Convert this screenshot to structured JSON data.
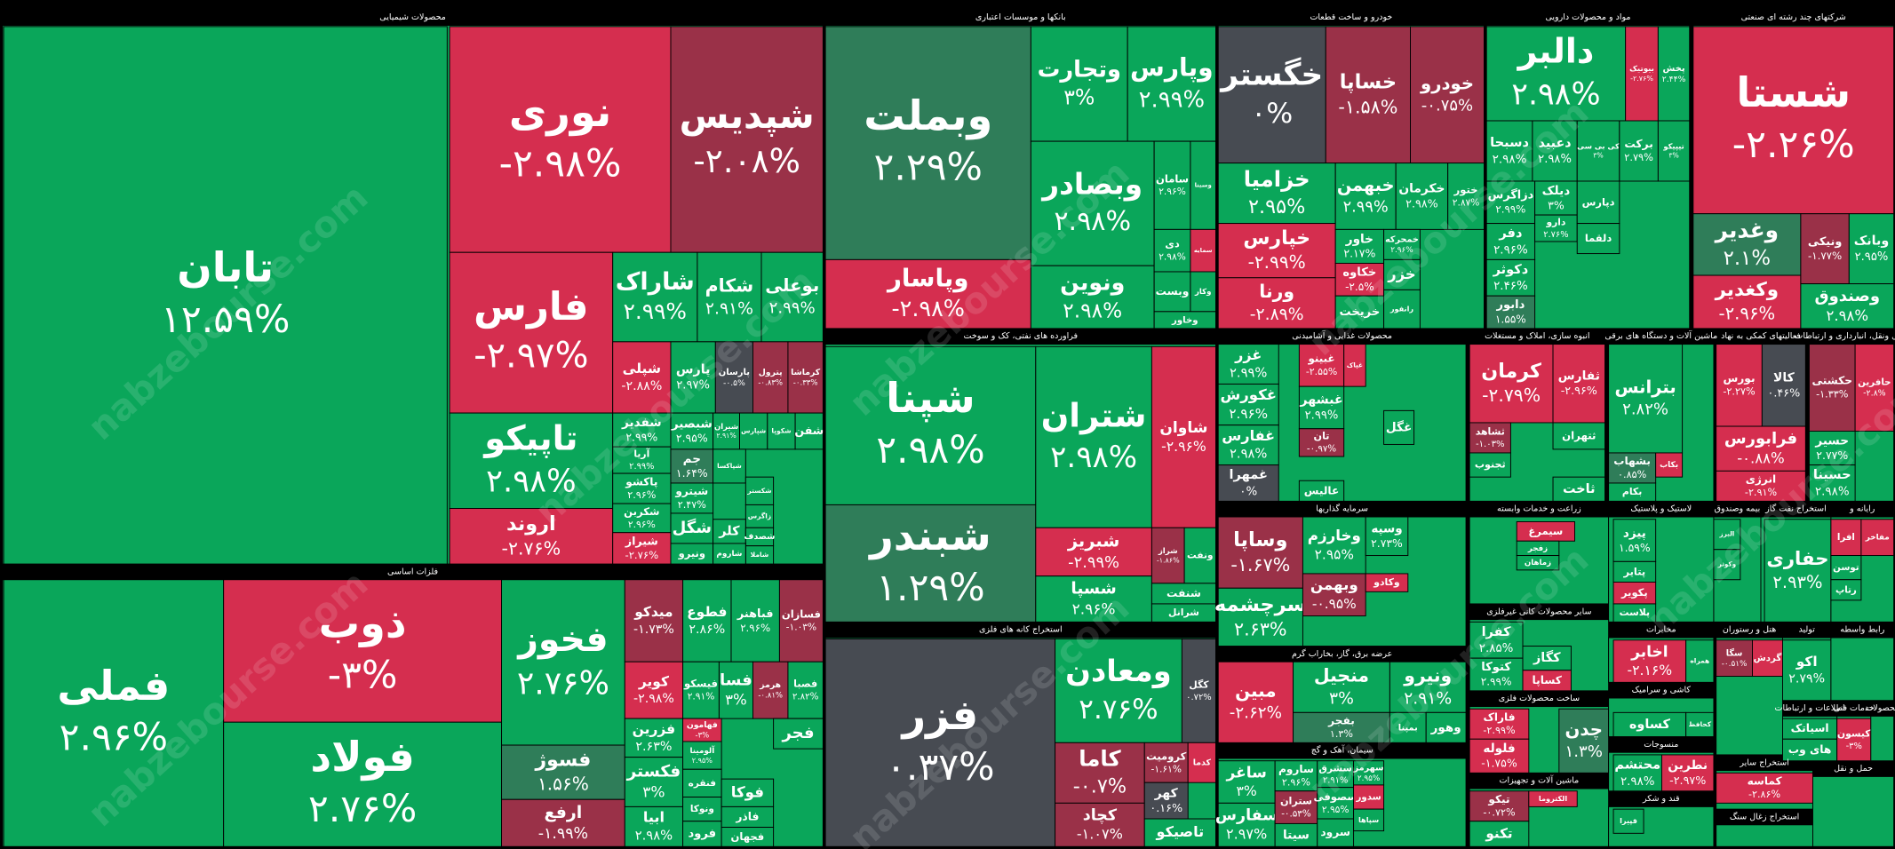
{
  "watermark": "nabzebourse.com",
  "sectors": [
    {
      "name": "محصولات شیمیایی",
      "tiles": [
        {
          "name": "تابان",
          "change": "۱۲.۵۹%"
        },
        {
          "name": "نوری",
          "change": "-۲.۹۸%"
        },
        {
          "name": "شپدیس",
          "change": "-۲.۰۸%"
        },
        {
          "name": "فارس",
          "change": "-۲.۹۷%"
        },
        {
          "name": "شاراک",
          "change": "۲.۹۹%"
        },
        {
          "name": "شکام",
          "change": "۲.۹۱%"
        },
        {
          "name": "بوعلی",
          "change": "۲.۹۹%"
        },
        {
          "name": "شپلی",
          "change": "-۲.۸۸%"
        },
        {
          "name": "پارس",
          "change": "۲.۹۷%"
        },
        {
          "name": "پارسان",
          "change": "-۰.۵%"
        },
        {
          "name": "پترول",
          "change": "-۰.۸۳%"
        },
        {
          "name": "کرماشا",
          "change": "-۰.۳۳%"
        },
        {
          "name": "تاپیکو",
          "change": "۲.۹۸%"
        },
        {
          "name": "اروند",
          "change": "-۲.۷۶%"
        },
        {
          "name": "شفدیر",
          "change": "۲.۹۹%"
        },
        {
          "name": "آریا",
          "change": "۲.۹۹%"
        },
        {
          "name": "پاکشو",
          "change": "۲.۹۶%"
        },
        {
          "name": "شکربن",
          "change": "۲.۹۶%"
        },
        {
          "name": "شیراز",
          "change": "-۲.۷۶%"
        },
        {
          "name": "شبصیر",
          "change": "۲.۹۵%"
        },
        {
          "name": "جم",
          "change": "۱.۶۴%"
        },
        {
          "name": "شیترو",
          "change": "۲.۴۷%"
        },
        {
          "name": "شگل"
        },
        {
          "name": "ونیرو"
        },
        {
          "name": "شیران",
          "change": "۲.۹۱%"
        },
        {
          "name": "شپارس"
        },
        {
          "name": "شکوپا"
        },
        {
          "name": "شفن"
        },
        {
          "name": "شپاکسا"
        },
        {
          "name": "شکستر"
        },
        {
          "name": "زاگرس"
        },
        {
          "name": "کلر"
        },
        {
          "name": "شصدف"
        },
        {
          "name": "شاملا"
        },
        {
          "name": "شاروم"
        }
      ]
    },
    {
      "name": "فلزات اساسی",
      "tiles": [
        {
          "name": "فملی",
          "change": "۲.۹۶%"
        },
        {
          "name": "ذوب",
          "change": "-۳%"
        },
        {
          "name": "فولاد",
          "change": "۲.۷۶%"
        },
        {
          "name": "فخوز",
          "change": "۲.۷۶%"
        },
        {
          "name": "فسوژ",
          "change": "۱.۵۶%"
        },
        {
          "name": "ارفع",
          "change": "-۱.۹۹%"
        },
        {
          "name": "میدکو",
          "change": "-۱.۷۳%"
        },
        {
          "name": "فطوع",
          "change": "۲.۸۶%"
        },
        {
          "name": "فباهنر",
          "change": "۲.۹۶%"
        },
        {
          "name": "فسازان",
          "change": "-۱.۰۳%"
        },
        {
          "name": "کویر",
          "change": "-۲.۹۸%"
        },
        {
          "name": "فیسکو",
          "change": "۲.۹۱%"
        },
        {
          "name": "فسا",
          "change": "۳%"
        },
        {
          "name": "هرمز",
          "change": "-۰.۸۱%"
        },
        {
          "name": "فصبا",
          "change": "۲.۸۲%"
        },
        {
          "name": "فزرین",
          "change": "۲.۶۳%"
        },
        {
          "name": "فکستر",
          "change": "۳%"
        },
        {
          "name": "ابیا",
          "change": "۲.۹۸%"
        },
        {
          "name": "فهامون",
          "change": "-۳%"
        },
        {
          "name": "آلومینا",
          "change": "۲.۹۵%"
        },
        {
          "name": "فنقره"
        },
        {
          "name": "ونوکا"
        },
        {
          "name": "فرود"
        },
        {
          "name": "فجر"
        },
        {
          "name": "فوکا"
        },
        {
          "name": "فاذر"
        },
        {
          "name": "فجهان"
        }
      ]
    },
    {
      "name": "بانکها و موسسات اعتباری",
      "tiles": [
        {
          "name": "وبملت",
          "change": "۲.۲۹%"
        },
        {
          "name": "وپاسار",
          "change": "-۲.۹۸%"
        },
        {
          "name": "وتجارت",
          "change": "۳%"
        },
        {
          "name": "وپارس",
          "change": "۲.۹۹%"
        },
        {
          "name": "وبصادر",
          "change": "۲.۹۸%"
        },
        {
          "name": "ونوین",
          "change": "۲.۹۸%"
        },
        {
          "name": "سامان",
          "change": "۲.۹۶%"
        },
        {
          "name": "وسینا"
        },
        {
          "name": "دی",
          "change": "۲.۹۸%"
        },
        {
          "name": "سمایه"
        },
        {
          "name": "وبست"
        },
        {
          "name": "وکار"
        },
        {
          "name": "وخاور"
        }
      ]
    },
    {
      "name": "فراورده های نفتی، کک و سوخت",
      "tiles": [
        {
          "name": "شپنا",
          "change": "۲.۹۸%"
        },
        {
          "name": "شبندر",
          "change": "۱.۲۹%"
        },
        {
          "name": "شتران",
          "change": "۲.۹۸%"
        },
        {
          "name": "شاوان",
          "change": "-۲.۹۶%"
        },
        {
          "name": "شبریز",
          "change": "-۲.۹۹%"
        },
        {
          "name": "شسپا",
          "change": "۲.۹۶%"
        },
        {
          "name": "شراز",
          "change": "-۱.۸۶%"
        },
        {
          "name": "ونفت"
        },
        {
          "name": "شنفت"
        },
        {
          "name": "شرانل"
        }
      ]
    },
    {
      "name": "استخراج کانه های فلزی",
      "tiles": [
        {
          "name": "فزر",
          "change": "۰.۳۷%"
        },
        {
          "name": "ومعادن",
          "change": "۲.۷۶%"
        },
        {
          "name": "کگل",
          "change": "۰.۷۲%"
        },
        {
          "name": "کاما",
          "change": "-۰.۷%"
        },
        {
          "name": "کرومیت",
          "change": "-۱.۶۱%"
        },
        {
          "name": "کدما"
        },
        {
          "name": "کچاد",
          "change": "-۱.۰۷%"
        },
        {
          "name": "کهر",
          "change": "۰.۱۶%"
        },
        {
          "name": "تاصیکو"
        }
      ]
    },
    {
      "name": "خودرو و ساخت قطعات",
      "tiles": [
        {
          "name": "خگستر",
          "change": "۰%"
        },
        {
          "name": "خساپا",
          "change": "-۱.۵۸%"
        },
        {
          "name": "خودرو",
          "change": "-۰.۷۵%"
        },
        {
          "name": "خزامیا",
          "change": "۲.۹۵%"
        },
        {
          "name": "خپارس",
          "change": "-۲.۹۹%"
        },
        {
          "name": "ورنا",
          "change": "-۲.۸۹%"
        },
        {
          "name": "خبهمن",
          "change": "۲.۹۹%"
        },
        {
          "name": "خکرمان",
          "change": "۲.۹۸%"
        },
        {
          "name": "ختور",
          "change": "۲.۸۷%"
        },
        {
          "name": "خاور",
          "change": "۲.۱۷%"
        },
        {
          "name": "خکاوه",
          "change": "-۲.۵%"
        },
        {
          "name": "خریخت"
        },
        {
          "name": "خمحرکه",
          "change": "۲.۹۶%"
        },
        {
          "name": "خزر"
        },
        {
          "name": "رانفور"
        }
      ]
    },
    {
      "name": "مواد و محصولات دارویی",
      "tiles": [
        {
          "name": "دالبر",
          "change": "۲.۹۸%"
        },
        {
          "name": "بیوتیک",
          "change": "-۲.۷۶%"
        },
        {
          "name": "پخش",
          "change": "۲.۴۴%"
        },
        {
          "name": "دسبحا",
          "change": "۲.۹۸%"
        },
        {
          "name": "دعبید",
          "change": "۲.۹۸%"
        },
        {
          "name": "کی بی سی",
          "change": "۳%"
        },
        {
          "name": "برکت",
          "change": "۲.۷۹%"
        },
        {
          "name": "تیپیکو",
          "change": "۳%"
        },
        {
          "name": "دزاگرس",
          "change": "۲.۹۹%"
        },
        {
          "name": "دفر",
          "change": "۲.۹۶%"
        },
        {
          "name": "دکوثر",
          "change": "۲.۴۶%"
        },
        {
          "name": "دابور",
          "change": "۱.۵۵%"
        },
        {
          "name": "دیلک",
          "change": "۳%"
        },
        {
          "name": "دارو",
          "change": "۲.۷۶%"
        },
        {
          "name": "دپارس"
        },
        {
          "name": "دلقما"
        }
      ]
    },
    {
      "name": "شرکتهای چند رشته ای صنعتی",
      "tiles": [
        {
          "name": "شستا",
          "change": "-۲.۲۶%"
        },
        {
          "name": "وغدیر",
          "change": "۲.۱%"
        },
        {
          "name": "وکغدیر",
          "change": "-۲.۹۶%"
        },
        {
          "name": "ونیکی",
          "change": "-۱.۷۷%"
        },
        {
          "name": "وبانک",
          "change": "۲.۹۵%"
        },
        {
          "name": "وصندوق",
          "change": "۲.۹۸%"
        }
      ]
    },
    {
      "name": "محصولات غذایی و آشامیدنی",
      "tiles": [
        {
          "name": "غزر",
          "change": "۲.۹۹%"
        },
        {
          "name": "غکورش",
          "change": "۲.۹۶%"
        },
        {
          "name": "غفارس",
          "change": "۲.۹۸%"
        },
        {
          "name": "غمهرا",
          "change": "۰%"
        },
        {
          "name": "غبینو",
          "change": "-۲.۵۵%"
        },
        {
          "name": "غپاک"
        },
        {
          "name": "غبشهر",
          "change": "۲.۹۹%"
        },
        {
          "name": "تان",
          "change": "-۰.۹۷%"
        },
        {
          "name": "عالیس"
        },
        {
          "name": "غگل"
        }
      ]
    },
    {
      "name": "انبوه سازی، املاک و مستغلات",
      "tiles": [
        {
          "name": "کرمان",
          "change": "-۲.۷۹%"
        },
        {
          "name": "ثفارس",
          "change": "-۲.۹۶%"
        },
        {
          "name": "ثشاهد",
          "change": "-۱.۰۳%"
        },
        {
          "name": "ثتهران"
        },
        {
          "name": "ثجنوب"
        },
        {
          "name": "ثاخت"
        }
      ]
    },
    {
      "name": "ماشین آلات و دستگاه های برقی",
      "tiles": [
        {
          "name": "بترانس",
          "change": "۲.۸۲%"
        },
        {
          "name": "بشهاب",
          "change": "۰.۸۵%"
        },
        {
          "name": "بکام"
        },
        {
          "name": "بکاب"
        }
      ]
    },
    {
      "name": "فعالیتهای کمکی به نهاد",
      "tiles": [
        {
          "name": "بورس",
          "change": "-۲.۲۷%"
        },
        {
          "name": "کالا",
          "change": "۰.۴۶%"
        },
        {
          "name": "فرابورس",
          "change": "-۰.۸۸%"
        },
        {
          "name": "انرژی",
          "change": "-۲.۹۱%"
        }
      ]
    },
    {
      "name": "حمل ونقل، انبارداری و ارتباطات",
      "tiles": [
        {
          "name": "حکشتی",
          "change": "-۱.۳۳%"
        },
        {
          "name": "حافرین",
          "change": "-۲.۸%"
        },
        {
          "name": "حسیر",
          "change": "۲.۷۷%"
        },
        {
          "name": "حسینا",
          "change": "۲.۹۸%"
        }
      ]
    },
    {
      "name": "سرمایه گذاریها",
      "tiles": [
        {
          "name": "وساپا",
          "change": "-۱.۶۷%"
        },
        {
          "name": "سرچشمه",
          "change": "۲.۶۳%"
        },
        {
          "name": "وخارزم",
          "change": "۲.۹۵%"
        },
        {
          "name": "وسپه",
          "change": "۲.۷۳%"
        },
        {
          "name": "وبهمن",
          "change": "-۰.۹۵%"
        },
        {
          "name": "وکادو"
        }
      ]
    },
    {
      "name": "زراعت و خدمات وابسته",
      "tiles": [
        {
          "name": "سیمرغ"
        },
        {
          "name": "زفجر"
        },
        {
          "name": "زماهان"
        }
      ]
    },
    {
      "name": "لاستیک و پلاستیک",
      "tiles": [
        {
          "name": "پیزد",
          "change": "۱.۵۹%"
        },
        {
          "name": "پتایر"
        },
        {
          "name": "پکویر"
        },
        {
          "name": "پلاست"
        }
      ]
    },
    {
      "name": "بیمه وصندوق",
      "tiles": [
        {
          "name": "البرز"
        },
        {
          "name": "وکوثر"
        }
      ]
    },
    {
      "name": "استخراج نفت گاز",
      "tiles": [
        {
          "name": "حفاری",
          "change": "۲.۹۳%"
        }
      ]
    },
    {
      "name": "رایانه و",
      "tiles": [
        {
          "name": "افرا"
        },
        {
          "name": "مفاخر"
        },
        {
          "name": "توسن"
        },
        {
          "name": "رتاپ"
        }
      ]
    },
    {
      "name": "عرضه برق، گاز، بخاراب گرم",
      "tiles": [
        {
          "name": "مبین",
          "change": "-۲.۶۲%"
        },
        {
          "name": "منجیل",
          "change": "۳%"
        },
        {
          "name": "بفجر",
          "change": "۱.۳%"
        },
        {
          "name": "ونیرو",
          "change": "۲.۹۱%"
        },
        {
          "name": "بمپنا"
        },
        {
          "name": "وهور"
        }
      ]
    },
    {
      "name": "سیمان، آهک و گچ",
      "tiles": [
        {
          "name": "ساغر",
          "change": "۳%"
        },
        {
          "name": "سفارس",
          "change": "۲.۹۷%"
        },
        {
          "name": "ساروم",
          "change": "۲.۹۶%"
        },
        {
          "name": "ستران",
          "change": "-۰.۵۳%"
        },
        {
          "name": "سیتا"
        },
        {
          "name": "سشرق",
          "change": "۲.۹۱%"
        },
        {
          "name": "سصوفی",
          "change": "۲.۹۵%"
        },
        {
          "name": "سرود"
        },
        {
          "name": "سهرمز",
          "change": "۲.۹۵%"
        },
        {
          "name": "سدور"
        },
        {
          "name": "سپاها"
        }
      ]
    },
    {
      "name": "سایر محصولات کانی غیرفلزی",
      "tiles": [
        {
          "name": "کفرا",
          "change": "۲.۸۵%"
        },
        {
          "name": "کتوکا",
          "change": "۲.۹۹%"
        },
        {
          "name": "کگاز"
        },
        {
          "name": "کساپا"
        }
      ]
    },
    {
      "name": "ساخت محصولات فلزی",
      "tiles": [
        {
          "name": "فاراک",
          "change": "-۲.۹۹%"
        },
        {
          "name": "فلوله",
          "change": "-۱.۷۵%"
        },
        {
          "name": "چدن",
          "change": "۱.۳%"
        }
      ]
    },
    {
      "name": "ماشین آلات و تجهیزات",
      "tiles": [
        {
          "name": "تیکو",
          "change": "-۰.۷۲%"
        },
        {
          "name": "تکنو"
        },
        {
          "name": "الکتروما"
        }
      ]
    },
    {
      "name": "مخابرات",
      "tiles": [
        {
          "name": "اخابر",
          "change": "-۲.۱۶%"
        },
        {
          "name": "همراه"
        }
      ]
    },
    {
      "name": "کاشی و سرامیک",
      "tiles": [
        {
          "name": "کساوه"
        },
        {
          "name": "کحافظ"
        }
      ]
    },
    {
      "name": "منسوجات",
      "tiles": [
        {
          "name": "محتشم",
          "change": "۲.۹۸%"
        },
        {
          "name": "نطرین",
          "change": "-۲.۹۷%"
        }
      ]
    },
    {
      "name": "قند و شکر",
      "tiles": [
        {
          "name": "قپیرا"
        }
      ]
    },
    {
      "name": "هتل و رستوران",
      "tiles": [
        {
          "name": "سگا",
          "change": "-۰.۵۱%"
        },
        {
          "name": "گردش"
        }
      ]
    },
    {
      "name": "تولید",
      "tiles": [
        {
          "name": "اکو",
          "change": "۲.۷۹%"
        }
      ]
    },
    {
      "name": "رابط واسطه",
      "tiles": []
    },
    {
      "name": "اطلاعات و ارتباطات",
      "tiles": [
        {
          "name": "اسیاتک"
        },
        {
          "name": "های وب"
        }
      ]
    },
    {
      "name": "خدمات فنی",
      "tiles": [
        {
          "name": "کیسون",
          "change": "-۳%"
        }
      ]
    },
    {
      "name": "محصولات",
      "tiles": []
    },
    {
      "name": "استخراج سایر",
      "tiles": [
        {
          "name": "کماسه",
          "change": "-۲.۸۶%"
        }
      ]
    },
    {
      "name": "استخراج زغال سنگ",
      "tiles": []
    },
    {
      "name": "حمل و نقل",
      "tiles": []
    }
  ]
}
